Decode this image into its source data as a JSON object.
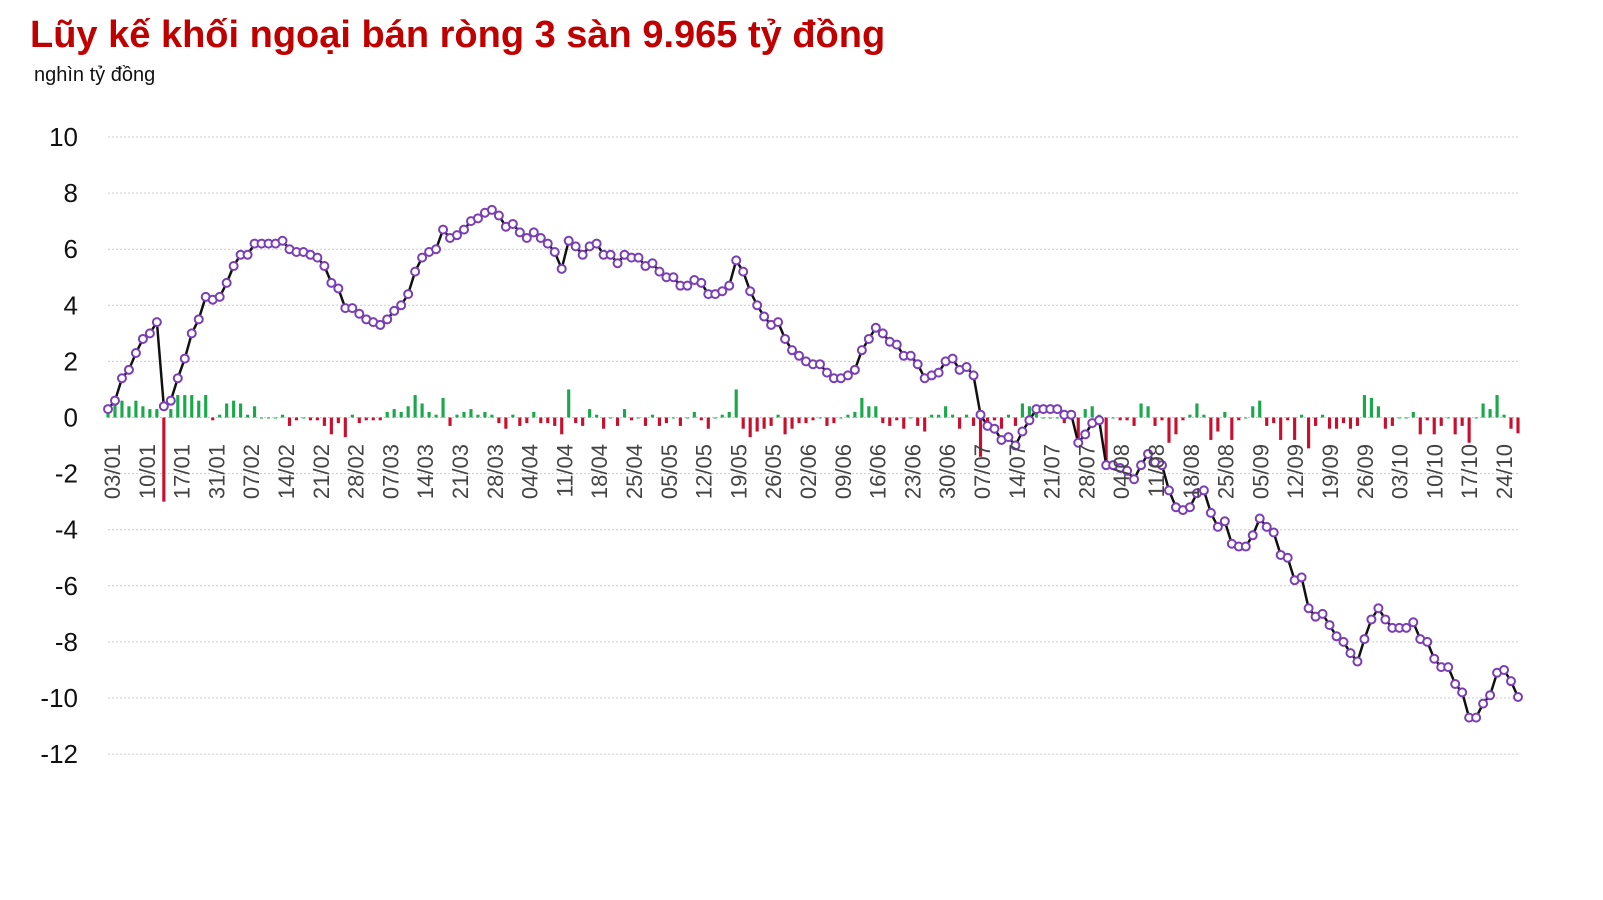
{
  "chart_data": {
    "type": "line",
    "title": "Lũy kế khối ngoại bán ròng 3 sàn 9.965 tỷ đồng",
    "ylabel": "nghìn tỷ đồng",
    "ylim": [
      -12,
      10
    ],
    "yticks": [
      10,
      8,
      6,
      4,
      2,
      0,
      -2,
      -4,
      -6,
      -8,
      -10,
      -12
    ],
    "grid": true,
    "xticks": [
      "03/01",
      "10/01",
      "17/01",
      "31/01",
      "07/02",
      "14/02",
      "21/02",
      "28/02",
      "07/03",
      "14/03",
      "21/03",
      "28/03",
      "04/04",
      "11/04",
      "18/04",
      "25/04",
      "05/05",
      "12/05",
      "19/05",
      "26/05",
      "02/06",
      "09/06",
      "16/06",
      "23/06",
      "30/06",
      "07/07",
      "14/07",
      "21/07",
      "28/07",
      "04/08",
      "11/08",
      "18/08",
      "25/08",
      "05/09",
      "12/09",
      "19/09",
      "26/09",
      "03/10",
      "10/10",
      "17/10",
      "24/10"
    ],
    "colors": {
      "line": "#111111",
      "marker": "#7b3fb5",
      "positive": "#1aa84a",
      "negative": "#c8102e",
      "grid": "#cccccc"
    },
    "series": [
      {
        "kind": "cumulative",
        "values": [
          0.3,
          0.6,
          1.4,
          1.7,
          2.3,
          2.8,
          3.0,
          3.4,
          0.4,
          0.6,
          1.4,
          2.1,
          3.0,
          3.5,
          4.3,
          4.2,
          4.3,
          4.8,
          5.4,
          5.8,
          5.8,
          6.2,
          6.2,
          6.2,
          6.2,
          6.3,
          6.0,
          5.9,
          5.9,
          5.8,
          5.7,
          5.4,
          4.8,
          4.6,
          3.9,
          3.9,
          3.7,
          3.5,
          3.4,
          3.3,
          3.5,
          3.8,
          4.0,
          4.4,
          5.2,
          5.7,
          5.9,
          6.0,
          6.7,
          6.4,
          6.5,
          6.7,
          7.0,
          7.1,
          7.3,
          7.4,
          7.2,
          6.8,
          6.9,
          6.6,
          6.4,
          6.6,
          6.4,
          6.2,
          5.9,
          5.3,
          6.3,
          6.1,
          5.8,
          6.1,
          6.2,
          5.8,
          5.8,
          5.5,
          5.8,
          5.7,
          5.7,
          5.4,
          5.5,
          5.2,
          5.0,
          5.0,
          4.7,
          4.7,
          4.9,
          4.8,
          4.4,
          4.4,
          4.5,
          4.7,
          5.6,
          5.2,
          4.5,
          4.0,
          3.6,
          3.3,
          3.4,
          2.8,
          2.4,
          2.2,
          2.0,
          1.9,
          1.9,
          1.6,
          1.4,
          1.4,
          1.5,
          1.7,
          2.4,
          2.8,
          3.2,
          3.0,
          2.7,
          2.6,
          2.2,
          2.2,
          1.9,
          1.4,
          1.5,
          1.6,
          2.0,
          2.1,
          1.7,
          1.8,
          1.5,
          0.1,
          -0.3,
          -0.4,
          -0.8,
          -0.7,
          -1.0,
          -0.5,
          -0.1,
          0.3,
          0.3,
          0.3,
          0.3,
          0.1,
          0.1,
          -0.9,
          -0.6,
          -0.2,
          -0.1,
          -1.7,
          -1.7,
          -1.8,
          -1.9,
          -2.2,
          -1.7,
          -1.3,
          -1.6,
          -1.7,
          -2.6,
          -3.2,
          -3.3,
          -3.2,
          -2.7,
          -2.6,
          -3.4,
          -3.9,
          -3.7,
          -4.5,
          -4.6,
          -4.6,
          -4.2,
          -3.6,
          -3.9,
          -4.1,
          -4.9,
          -5.0,
          -5.8,
          -5.7,
          -6.8,
          -7.1,
          -7.0,
          -7.4,
          -7.8,
          -8.0,
          -8.4,
          -8.7,
          -7.9,
          -7.2,
          -6.8,
          -7.2,
          -7.5,
          -7.5,
          -7.5,
          -7.3,
          -7.9,
          -8.0,
          -8.6,
          -8.9,
          -8.9,
          -9.5,
          -9.8,
          -10.7,
          -10.7,
          -10.2,
          -9.9,
          -9.1,
          -9.0,
          -9.4,
          -9.965
        ]
      },
      {
        "kind": "daily",
        "values": [
          0.3,
          0.6,
          0.6,
          0.4,
          0.6,
          0.4,
          0.3,
          0.3,
          -3.0,
          0.3,
          0.8,
          0.8,
          0.8,
          0.6,
          0.8,
          -0.1,
          0.1,
          0.5,
          0.6,
          0.5,
          0.1,
          0.4,
          0.0,
          0.0,
          0.0,
          0.1,
          -0.3,
          -0.1,
          0.0,
          -0.1,
          -0.1,
          -0.3,
          -0.6,
          -0.2,
          -0.7,
          0.1,
          -0.2,
          -0.1,
          -0.1,
          -0.1,
          0.2,
          0.3,
          0.2,
          0.4,
          0.8,
          0.5,
          0.2,
          0.1,
          0.7,
          -0.3,
          0.1,
          0.2,
          0.3,
          0.1,
          0.2,
          0.1,
          -0.2,
          -0.4,
          0.1,
          -0.3,
          -0.2,
          0.2,
          -0.2,
          -0.2,
          -0.3,
          -0.6,
          1.0,
          -0.2,
          -0.3,
          0.3,
          0.1,
          -0.4,
          0.0,
          -0.3,
          0.3,
          -0.1,
          0.0,
          -0.3,
          0.1,
          -0.3,
          -0.2,
          0.0,
          -0.3,
          0.0,
          0.2,
          -0.1,
          -0.4,
          0.0,
          0.1,
          0.2,
          1.0,
          -0.4,
          -0.7,
          -0.5,
          -0.4,
          -0.3,
          0.1,
          -0.6,
          -0.4,
          -0.2,
          -0.2,
          -0.1,
          0.0,
          -0.3,
          -0.2,
          0.0,
          0.1,
          0.2,
          0.7,
          0.4,
          0.4,
          -0.2,
          -0.3,
          -0.1,
          -0.4,
          0.0,
          -0.3,
          -0.5,
          0.1,
          0.1,
          0.4,
          0.1,
          -0.4,
          0.1,
          -0.3,
          -1.4,
          -0.4,
          -0.1,
          -0.4,
          0.1,
          -0.3,
          0.5,
          0.4,
          0.4,
          0.0,
          0.0,
          0.0,
          -0.2,
          0.0,
          -1.0,
          0.3,
          0.4,
          0.1,
          -1.6,
          0.0,
          -0.1,
          -0.1,
          -0.3,
          0.5,
          0.4,
          -0.3,
          -0.1,
          -0.9,
          -0.6,
          -0.1,
          0.1,
          0.5,
          0.1,
          -0.8,
          -0.5,
          0.2,
          -0.8,
          -0.1,
          0.0,
          0.4,
          0.6,
          -0.3,
          -0.2,
          -0.8,
          -0.1,
          -0.8,
          0.1,
          -1.1,
          -0.3,
          0.1,
          -0.4,
          -0.4,
          -0.2,
          -0.4,
          -0.3,
          0.8,
          0.7,
          0.4,
          -0.4,
          -0.3,
          0.0,
          0.0,
          0.2,
          -0.6,
          -0.1,
          -0.6,
          -0.3,
          0.0,
          -0.6,
          -0.3,
          -0.9,
          0.0,
          0.5,
          0.3,
          0.8,
          0.1,
          -0.4,
          -0.565
        ]
      }
    ]
  }
}
